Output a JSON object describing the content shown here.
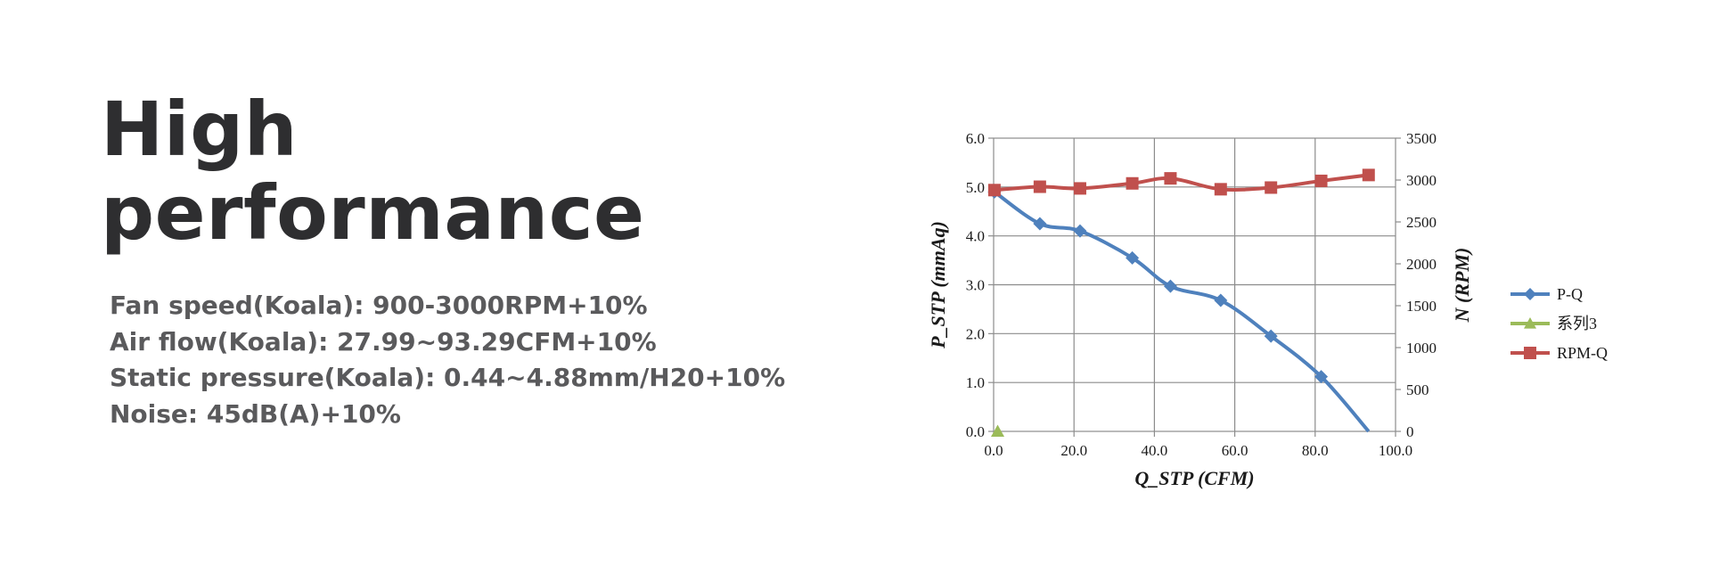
{
  "heading": {
    "line1": "High",
    "line2": "performance"
  },
  "specs": [
    "Fan speed(Koala): 900-3000RPM+10%",
    "Air flow(Koala): 27.99~93.29CFM+10%",
    "Static pressure(Koala): 0.44~4.88mm/H20+10%",
    "Noise: 45dB(A)+10%"
  ],
  "chart_data": {
    "type": "line",
    "xlabel": "Q_STP (CFM)",
    "ylabel": "P_STP (mmAq)",
    "y2label": "N (RPM)",
    "xlim": [
      0,
      100
    ],
    "ylim": [
      0,
      6
    ],
    "y2lim": [
      0,
      3500
    ],
    "xticks": [
      "0.0",
      "20.0",
      "40.0",
      "60.0",
      "80.0",
      "100.0"
    ],
    "yticks": [
      "0.0",
      "1.0",
      "2.0",
      "3.0",
      "4.0",
      "5.0",
      "6.0"
    ],
    "y2ticks": [
      "0",
      "500",
      "1000",
      "1500",
      "2000",
      "2500",
      "3000",
      "3500"
    ],
    "grid": true,
    "legend_position": "right",
    "series": [
      {
        "name": "P-Q",
        "axis": "left",
        "color": "#4f81bd",
        "marker": "diamond",
        "x": [
          0.2,
          11.5,
          21.5,
          34.5,
          44,
          56.5,
          69,
          81.5,
          93.3
        ],
        "y": [
          4.9,
          4.25,
          4.1,
          3.55,
          2.97,
          2.68,
          1.95,
          1.12,
          0
        ]
      },
      {
        "name": "系列3",
        "axis": "left",
        "color": "#9bbb59",
        "marker": "triangle",
        "x": [
          1
        ],
        "y": [
          0
        ]
      },
      {
        "name": "RPM-Q",
        "axis": "right",
        "color": "#c0504d",
        "marker": "square",
        "x": [
          0.2,
          11.5,
          21.5,
          34.5,
          44,
          56.5,
          69,
          81.5,
          93.3
        ],
        "y": [
          2880,
          2920,
          2900,
          2960,
          3020,
          2890,
          2910,
          2990,
          3060
        ]
      }
    ]
  }
}
